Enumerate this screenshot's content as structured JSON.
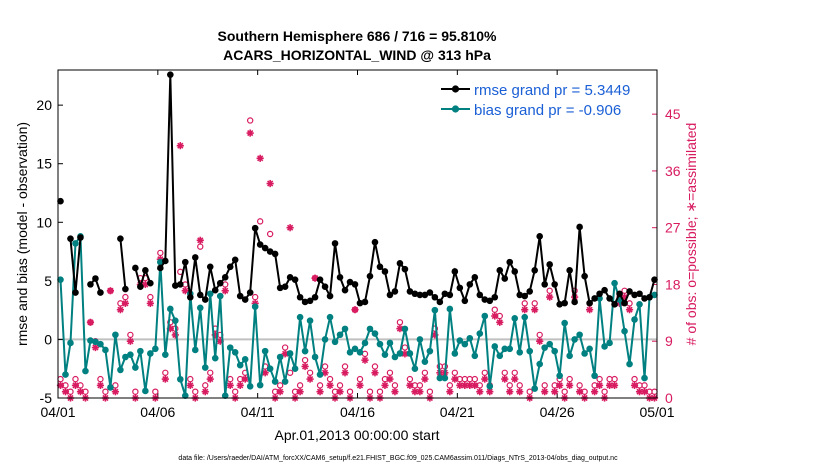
{
  "chart_data": {
    "type": "line",
    "title": "Southern Hemisphere 686 / 716 = 95.810%",
    "subtitle": "ACARS_HORIZONTAL_WIND @ 313 hPa",
    "xlabel": "Apr.01,2013 00:00:00 start",
    "ylabel": "rmse and bias (model - observation)",
    "ylabel_right": "# of obs: o=possible; ∗=assimilated",
    "footer": "data file: /Users/raeder/DAI/ATM_forcXX/CAM6_setup/f.e21.FHIST_BGC.f09_025.CAM6assim.011/Diags_NTrS_2013-04/obs_diag_output.nc",
    "xlim": [
      0,
      30
    ],
    "ylim": [
      -5,
      23
    ],
    "ylim_right": [
      0,
      52
    ],
    "x_ticks": [
      0,
      5,
      10,
      15,
      20,
      25,
      30
    ],
    "x_tick_labels": [
      "04/01",
      "04/06",
      "04/11",
      "04/16",
      "04/21",
      "04/26",
      "05/01"
    ],
    "y_ticks": [
      -5,
      0,
      5,
      10,
      15,
      20
    ],
    "y_tick_labels": [
      "-5",
      "0",
      "5",
      "10",
      "15",
      "20"
    ],
    "y_ticks_right": [
      0,
      9,
      18,
      27,
      36,
      45
    ],
    "y_tick_labels_right": [
      "0",
      "9",
      "18",
      "27",
      "36",
      "45"
    ],
    "zero_line": 0,
    "colors": {
      "rmse": "#000000",
      "bias": "#008080",
      "obs": "#d81b60",
      "legend_text": "#1a5fd6",
      "zero": "#c0c0c0"
    },
    "series": [
      {
        "name": "rmse grand pr = 5.3449",
        "x": [
          0.125,
          0.625,
          0.875,
          1.125,
          1.625,
          1.875,
          2.125,
          3.125,
          3.375,
          3.875,
          4.125,
          4.375,
          4.625,
          5.125,
          5.375,
          5.625,
          5.875,
          6.125,
          6.375,
          6.625,
          6.875,
          7.125,
          7.375,
          7.625,
          7.875,
          8.125,
          8.375,
          8.625,
          8.875,
          9.125,
          9.375,
          9.625,
          9.875,
          10.125,
          10.375,
          10.625,
          10.875,
          11.125,
          11.375,
          11.625,
          11.875,
          12.125,
          12.375,
          12.625,
          12.875,
          13.125,
          13.375,
          13.625,
          13.875,
          14.125,
          14.375,
          14.625,
          14.875,
          15.125,
          15.375,
          15.625,
          15.875,
          16.125,
          16.375,
          16.625,
          16.875,
          17.125,
          17.375,
          17.625,
          17.875,
          18.125,
          18.375,
          18.625,
          18.875,
          19.125,
          19.375,
          19.625,
          19.875,
          20.125,
          20.375,
          20.625,
          20.875,
          21.125,
          21.375,
          21.625,
          21.875,
          22.125,
          22.375,
          22.625,
          22.875,
          23.125,
          23.375,
          23.625,
          23.875,
          24.125,
          24.375,
          24.625,
          24.875,
          25.125,
          25.375,
          25.625,
          25.875,
          26.125,
          26.375,
          26.625,
          26.875,
          27.125,
          27.375,
          27.625,
          27.875,
          28.125,
          28.375,
          28.625,
          28.875,
          29.125,
          29.375,
          29.625,
          29.875
        ],
        "values": [
          11.8,
          8.6,
          4.0,
          8.7,
          4.7,
          5.2,
          4.0,
          8.6,
          4.3,
          6.1,
          4.5,
          5.9,
          4.8,
          6.1,
          6.7,
          22.6,
          4.6,
          4.7,
          6.6,
          3.6,
          7.0,
          3.8,
          3.4,
          6.2,
          4.2,
          4.8,
          5.3,
          6.2,
          6.8,
          3.7,
          3.4,
          4.0,
          9.5,
          8.1,
          7.8,
          7.5,
          7.3,
          4.4,
          4.5,
          5.3,
          5.1,
          3.6,
          3.2,
          3.3,
          3.6,
          5.1,
          4.5,
          3.7,
          8.2,
          5.3,
          4.2,
          4.9,
          4.7,
          3.1,
          3.2,
          5.4,
          8.3,
          6.2,
          5.8,
          3.8,
          4.1,
          6.5,
          6.0,
          4.1,
          3.9,
          3.8,
          3.8,
          4.0,
          3.6,
          3.2,
          3.9,
          3.8,
          5.8,
          4.4,
          3.3,
          4.7,
          5.3,
          3.8,
          3.4,
          3.3,
          3.6,
          5.9,
          5.2,
          6.6,
          5.8,
          3.8,
          3.7,
          4.1,
          5.9,
          8.8,
          4.7,
          6.4,
          4.7,
          3.0,
          3.1,
          5.9,
          3.2,
          9.6,
          5.4,
          3.1,
          3.5,
          3.9,
          4.2,
          3.5,
          3.0,
          3.9,
          3.1,
          4.1,
          3.8,
          3.9,
          3.5,
          3.6,
          5.1
        ],
        "markers": "filled-circle"
      },
      {
        "name": "bias grand pr = -0.906",
        "x": [
          0.125,
          0.375,
          0.625,
          0.875,
          1.125,
          1.375,
          1.625,
          1.875,
          2.125,
          2.375,
          2.625,
          2.875,
          3.125,
          3.375,
          3.625,
          3.875,
          4.125,
          4.375,
          4.625,
          4.875,
          5.125,
          5.375,
          5.625,
          5.875,
          6.125,
          6.375,
          6.625,
          6.875,
          7.125,
          7.375,
          7.625,
          7.875,
          8.125,
          8.375,
          8.625,
          8.875,
          9.125,
          9.375,
          9.625,
          9.875,
          10.125,
          10.375,
          10.625,
          10.875,
          11.125,
          11.375,
          11.625,
          11.875,
          12.125,
          12.375,
          12.625,
          12.875,
          13.125,
          13.375,
          13.625,
          13.875,
          14.125,
          14.375,
          14.625,
          14.875,
          15.125,
          15.375,
          15.625,
          15.875,
          16.125,
          16.375,
          16.625,
          16.875,
          17.125,
          17.375,
          17.625,
          17.875,
          18.125,
          18.375,
          18.625,
          18.875,
          19.125,
          19.375,
          19.625,
          19.875,
          20.125,
          20.375,
          20.625,
          20.875,
          21.125,
          21.375,
          21.625,
          21.875,
          22.125,
          22.375,
          22.625,
          22.875,
          23.125,
          23.375,
          23.625,
          23.875,
          24.125,
          24.375,
          24.625,
          24.875,
          25.125,
          25.375,
          25.625,
          25.875,
          26.125,
          26.375,
          26.625,
          26.875,
          27.125,
          27.375,
          27.625,
          27.875,
          28.125,
          28.375,
          28.625,
          28.875,
          29.125,
          29.375,
          29.625,
          29.875
        ],
        "values": [
          5.1,
          -3.0,
          -0.3,
          8.2,
          8.8,
          -2.7,
          -0.1,
          -0.2,
          -0.4,
          -0.9,
          -4.1,
          0.4,
          -2.6,
          -1.5,
          -1.3,
          -2.4,
          -1.0,
          -4.4,
          -1.2,
          -0.8,
          6.6,
          -1.3,
          2.6,
          1.6,
          -3.4,
          -4.8,
          3.9,
          -0.9,
          2.7,
          -2.4,
          3.9,
          -1.6,
          3.7,
          -4.8,
          -0.7,
          -1.1,
          -2.2,
          -1.7,
          -4.0,
          2.8,
          -3.9,
          -1.0,
          -2.5,
          -3.6,
          -1.5,
          -3.6,
          -1.2,
          -2.5,
          1.9,
          -1.0,
          1.6,
          -1.5,
          -3.0,
          0.0,
          1.9,
          -0.2,
          0.4,
          0.9,
          -1.1,
          -0.8,
          -1.1,
          -0.3,
          0.9,
          0.5,
          -0.4,
          -1.3,
          -0.3,
          -1.5,
          -1.2,
          0.9,
          -1.2,
          -2.5,
          0.0,
          -1.9,
          -1.0,
          2.5,
          -3.3,
          -3.3,
          2.6,
          -1.2,
          -0.1,
          -0.4,
          0.1,
          -1.4,
          0.5,
          2.0,
          -4.0,
          -0.6,
          -1.4,
          -0.8,
          -0.8,
          1.8,
          -1.1,
          1.9,
          -1.0,
          -4.2,
          -2.1,
          -0.7,
          -0.4,
          -1.0,
          -3.1,
          1.4,
          -1.4,
          0.0,
          0.4,
          -1.2,
          -0.8,
          -3.1,
          3.5,
          -0.6,
          -0.3,
          4.8,
          3.4,
          0.7,
          -2.1,
          1.7,
          3.0,
          -3.3,
          3.6,
          3.8
        ],
        "markers": "filled-circle"
      },
      {
        "name": "possible obs",
        "axis": "right",
        "markers": "open-circle",
        "x": [
          0.125,
          0.375,
          0.625,
          0.875,
          1.125,
          1.375,
          1.625,
          1.875,
          2.125,
          2.375,
          2.625,
          2.875,
          3.125,
          3.375,
          3.625,
          3.875,
          4.125,
          4.375,
          4.625,
          4.875,
          5.125,
          5.375,
          5.625,
          5.875,
          6.125,
          6.375,
          6.625,
          6.875,
          7.125,
          7.375,
          7.625,
          7.875,
          8.125,
          8.375,
          8.625,
          8.875,
          9.125,
          9.375,
          9.625,
          9.875,
          10.125,
          10.375,
          10.625,
          10.875,
          11.125,
          11.375,
          11.625,
          11.875,
          12.125,
          12.375,
          12.625,
          12.875,
          13.125,
          13.375,
          13.625,
          13.875,
          14.125,
          14.375,
          14.625,
          14.875,
          15.125,
          15.375,
          15.625,
          15.875,
          16.125,
          16.375,
          16.625,
          16.875,
          17.125,
          17.375,
          17.625,
          17.875,
          18.125,
          18.375,
          18.625,
          18.875,
          19.125,
          19.375,
          19.625,
          19.875,
          20.125,
          20.375,
          20.625,
          20.875,
          21.125,
          21.375,
          21.625,
          21.875,
          22.125,
          22.375,
          22.625,
          22.875,
          23.125,
          23.375,
          23.625,
          23.875,
          24.125,
          24.375,
          24.625,
          24.875,
          25.125,
          25.375,
          25.625,
          25.875,
          26.125,
          26.375,
          26.625,
          26.875,
          27.125,
          27.375,
          27.625,
          27.875,
          28.125,
          28.375,
          28.625,
          28.875,
          29.125,
          29.375,
          29.625,
          29.875
        ],
        "values": [
          3,
          2,
          1,
          3,
          2,
          1,
          12,
          9,
          3,
          1,
          17,
          2,
          15,
          16,
          10,
          1,
          19,
          19,
          16,
          1,
          23,
          4,
          12,
          11,
          20,
          18,
          3,
          1,
          24,
          2,
          4,
          11,
          10,
          18,
          3,
          1,
          3,
          4,
          44,
          16,
          28,
          5,
          26,
          1,
          2,
          8,
          4,
          1,
          2,
          6,
          4,
          19,
          2,
          5,
          3,
          1,
          2,
          5,
          1,
          14,
          3,
          7,
          1,
          5,
          1,
          3,
          4,
          2,
          12,
          8,
          3,
          2,
          2,
          4,
          1,
          11,
          5,
          5,
          2,
          4,
          3,
          3,
          3,
          3,
          2,
          4,
          2,
          14,
          13,
          4,
          2,
          4,
          2,
          15,
          1,
          15,
          10,
          2,
          17,
          2,
          3,
          1,
          3,
          17,
          2,
          1,
          15,
          2,
          3,
          1,
          3,
          3,
          16,
          17,
          15,
          3,
          2,
          2,
          1,
          1
        ]
      },
      {
        "name": "assimilated obs",
        "axis": "right",
        "markers": "asterisk",
        "x": [
          0.125,
          0.375,
          0.625,
          0.875,
          1.125,
          1.375,
          1.625,
          1.875,
          2.125,
          2.375,
          2.625,
          2.875,
          3.125,
          3.375,
          3.625,
          3.875,
          4.125,
          4.375,
          4.625,
          4.875,
          5.125,
          5.375,
          5.625,
          5.875,
          6.125,
          6.375,
          6.625,
          6.875,
          7.125,
          7.375,
          7.625,
          7.875,
          8.125,
          8.375,
          8.625,
          8.875,
          9.125,
          9.375,
          9.625,
          9.875,
          10.125,
          10.375,
          10.625,
          10.875,
          11.125,
          11.375,
          11.625,
          11.875,
          12.125,
          12.375,
          12.625,
          12.875,
          13.125,
          13.375,
          13.625,
          13.875,
          14.125,
          14.375,
          14.625,
          14.875,
          15.125,
          15.375,
          15.625,
          15.875,
          16.125,
          16.375,
          16.625,
          16.875,
          17.125,
          17.375,
          17.625,
          17.875,
          18.125,
          18.375,
          18.625,
          18.875,
          19.125,
          19.375,
          19.625,
          19.875,
          20.125,
          20.375,
          20.625,
          20.875,
          21.125,
          21.375,
          21.625,
          21.875,
          22.125,
          22.375,
          22.625,
          22.875,
          23.125,
          23.375,
          23.625,
          23.875,
          24.125,
          24.375,
          24.625,
          24.875,
          25.125,
          25.375,
          25.625,
          25.875,
          26.125,
          26.375,
          26.625,
          26.875,
          27.125,
          27.375,
          27.625,
          27.875,
          28.125,
          28.375,
          28.625,
          28.875,
          29.125,
          29.375,
          29.625,
          29.875
        ],
        "values": [
          2,
          1,
          0,
          2,
          1,
          0,
          12,
          8,
          2,
          0,
          17,
          1,
          14,
          15,
          9,
          0,
          18,
          18,
          15,
          0,
          22,
          3,
          11,
          10,
          40,
          17,
          2,
          0,
          25,
          1,
          3,
          10,
          9,
          17,
          2,
          0,
          2,
          3,
          42,
          15,
          38,
          4,
          34,
          0,
          1,
          7,
          27,
          0,
          1,
          5,
          3,
          19,
          1,
          4,
          2,
          0,
          1,
          4,
          0,
          14,
          2,
          6,
          0,
          4,
          0,
          2,
          3,
          1,
          11,
          7,
          2,
          1,
          1,
          3,
          0,
          10,
          4,
          4,
          1,
          3,
          2,
          2,
          2,
          2,
          1,
          3,
          1,
          13,
          12,
          3,
          1,
          3,
          1,
          14,
          0,
          14,
          9,
          1,
          16,
          1,
          2,
          0,
          2,
          16,
          1,
          0,
          14,
          1,
          2,
          0,
          2,
          2,
          15,
          16,
          14,
          2,
          1,
          1,
          0,
          0
        ]
      }
    ],
    "legend": {
      "placement": "top-right",
      "entries": [
        "rmse grand pr = 5.3449",
        "bias grand pr = -0.906"
      ]
    }
  }
}
